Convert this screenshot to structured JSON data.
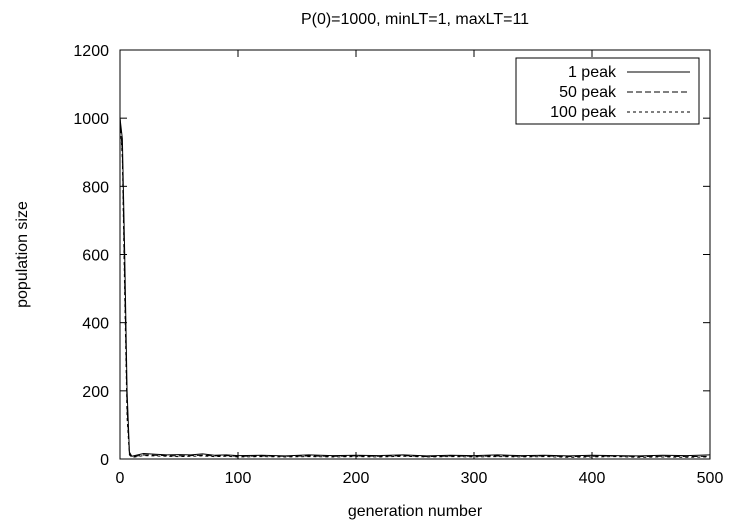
{
  "chart_data": {
    "type": "line",
    "title": "P(0)=1000, minLT=1, maxLT=11",
    "xlabel": "generation number",
    "ylabel": "population size",
    "xlim": [
      0,
      500
    ],
    "ylim": [
      0,
      1200
    ],
    "xticks": [
      0,
      100,
      200,
      300,
      400,
      500
    ],
    "yticks": [
      0,
      200,
      400,
      600,
      800,
      1000,
      1200
    ],
    "grid": false,
    "legend_position": "top-right",
    "series": [
      {
        "name": "1 peak",
        "dash": "solid",
        "x": [
          0,
          2,
          4,
          6,
          8,
          10,
          15,
          20,
          30,
          40,
          50,
          60,
          70,
          80,
          90,
          100,
          120,
          140,
          160,
          180,
          200,
          220,
          240,
          260,
          280,
          300,
          320,
          340,
          360,
          380,
          400,
          420,
          440,
          460,
          480,
          500
        ],
        "y": [
          1000,
          940,
          600,
          200,
          20,
          8,
          12,
          16,
          14,
          12,
          13,
          12,
          15,
          11,
          12,
          10,
          11,
          9,
          12,
          10,
          11,
          10,
          12,
          9,
          11,
          10,
          12,
          10,
          11,
          9,
          11,
          10,
          9,
          11,
          10,
          12
        ]
      },
      {
        "name": "50 peak",
        "dash": "dashed",
        "x": [
          0,
          2,
          4,
          6,
          8,
          10,
          15,
          20,
          30,
          40,
          50,
          60,
          70,
          80,
          90,
          100,
          120,
          140,
          160,
          180,
          200,
          220,
          240,
          260,
          280,
          300,
          320,
          340,
          360,
          380,
          400,
          420,
          440,
          460,
          480,
          500
        ],
        "y": [
          1000,
          900,
          520,
          150,
          15,
          6,
          9,
          12,
          11,
          10,
          9,
          10,
          11,
          9,
          10,
          8,
          9,
          8,
          9,
          8,
          9,
          8,
          10,
          7,
          9,
          8,
          9,
          8,
          9,
          7,
          8,
          9,
          7,
          8,
          7,
          8
        ]
      },
      {
        "name": "100 peak",
        "dash": "dotted",
        "x": [
          0,
          2,
          4,
          6,
          8,
          10,
          15,
          20,
          30,
          40,
          50,
          60,
          70,
          80,
          90,
          100,
          120,
          140,
          160,
          180,
          200,
          220,
          240,
          260,
          280,
          300,
          320,
          340,
          360,
          380,
          400,
          420,
          440,
          460,
          480,
          500
        ],
        "y": [
          1000,
          880,
          480,
          120,
          12,
          5,
          7,
          10,
          9,
          8,
          7,
          8,
          9,
          7,
          8,
          6,
          7,
          6,
          7,
          6,
          7,
          6,
          8,
          6,
          7,
          6,
          7,
          6,
          7,
          5,
          6,
          7,
          5,
          6,
          5,
          6
        ]
      }
    ]
  }
}
